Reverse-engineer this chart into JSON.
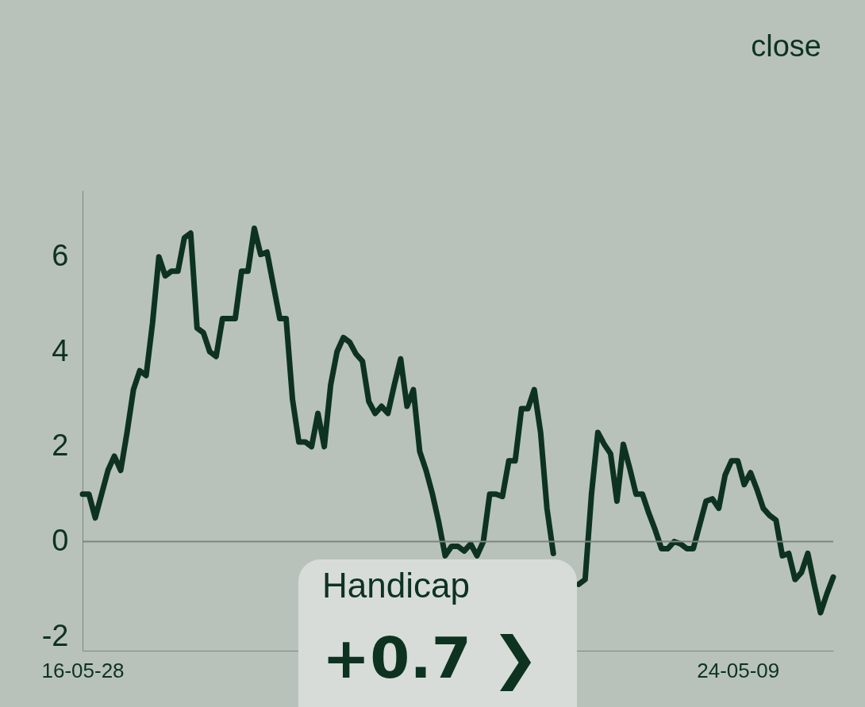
{
  "chart_data": {
    "type": "line",
    "categories": [
      "16-05-28",
      null,
      null,
      null,
      null,
      null,
      null,
      null,
      null,
      null,
      null,
      null,
      null,
      null,
      null,
      null,
      null,
      null,
      null,
      null,
      null,
      null,
      null,
      null,
      null,
      null,
      null,
      null,
      null,
      null,
      null,
      null,
      null,
      null,
      null,
      null,
      null,
      null,
      null,
      null,
      null,
      null,
      null,
      null,
      null,
      null,
      null,
      null,
      null,
      null,
      null,
      null,
      null,
      null,
      null,
      null,
      null,
      null,
      null,
      null,
      null,
      null,
      null,
      null,
      null,
      null,
      null,
      null,
      null,
      null,
      null,
      null,
      null,
      null,
      null,
      null,
      null,
      null,
      null,
      null,
      null,
      null,
      null,
      null,
      null,
      null,
      null,
      null,
      null,
      null,
      null,
      null,
      null,
      null,
      null,
      null,
      null,
      null,
      null,
      null,
      null,
      null,
      null,
      "24-05-09",
      null,
      null,
      null,
      null,
      null,
      null,
      null,
      null,
      null,
      null,
      null,
      null,
      null,
      null,
      null
    ],
    "series": [
      {
        "color": "#0d3320",
        "values": [
          1.0,
          1.0,
          0.5,
          1.0,
          1.5,
          1.8,
          1.5,
          2.3,
          3.2,
          3.6,
          3.5,
          4.6,
          6.0,
          5.6,
          5.7,
          5.7,
          6.4,
          6.5,
          4.5,
          4.4,
          4.0,
          3.9,
          4.7,
          4.7,
          4.7,
          5.7,
          5.7,
          6.6,
          6.05,
          6.1,
          5.4,
          4.7,
          4.7,
          3.0,
          2.1,
          2.1,
          2.0,
          2.7,
          2.0,
          3.3,
          4.0,
          4.3,
          4.2,
          3.95,
          3.8,
          2.95,
          2.7,
          2.85,
          2.7,
          3.3,
          3.85,
          2.85,
          3.2,
          1.9,
          1.5,
          1.0,
          0.4,
          -0.3,
          -0.1,
          -0.1,
          -0.2,
          -0.05,
          -0.3,
          0.0,
          1.0,
          1.0,
          0.95,
          1.7,
          1.7,
          2.8,
          2.8,
          3.2,
          2.3,
          0.7,
          -0.25,
          null,
          null,
          null,
          -0.9,
          -0.8,
          1.0,
          2.3,
          2.05,
          1.85,
          0.85,
          2.05,
          1.55,
          1.0,
          1.0,
          0.6,
          0.25,
          -0.15,
          -0.15,
          0.0,
          -0.05,
          -0.15,
          -0.15,
          0.35,
          0.85,
          0.9,
          0.7,
          1.4,
          1.7,
          1.7,
          1.2,
          1.45,
          1.1,
          0.7,
          0.55,
          0.45,
          -0.3,
          -0.25,
          -0.8,
          -0.65,
          -0.25,
          -0.9,
          -1.5,
          -1.1,
          -0.75
        ]
      }
    ],
    "ylim": [
      -2.3,
      7.4
    ],
    "yticks": [
      -2,
      0,
      2,
      4,
      6
    ],
    "ref_lines": [
      {
        "axis": "y",
        "value": 0,
        "color": "#7d857f"
      }
    ],
    "annotations": [
      "close",
      "Handicap",
      "+0.7 ❯"
    ]
  }
}
